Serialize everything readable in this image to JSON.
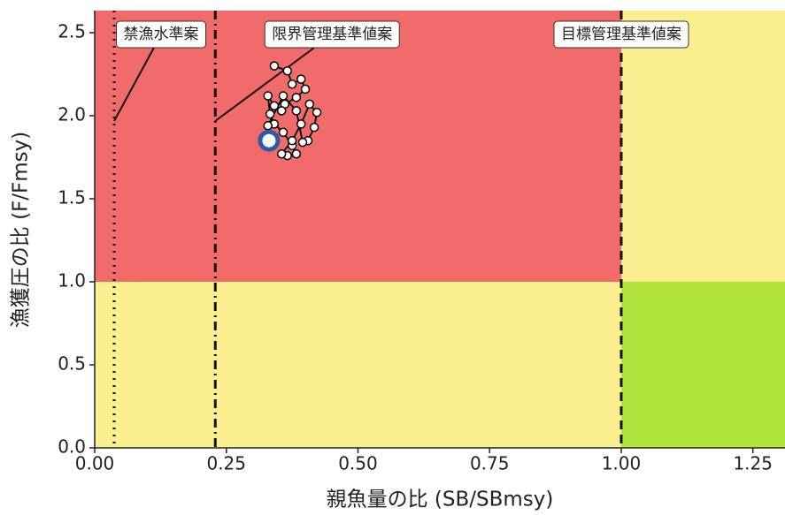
{
  "chart_data": {
    "type": "kobe",
    "x_label": "親魚量の比 (SB/SBmsy)",
    "y_label": "漁獲圧の比 (F/Fmsy)",
    "xlim": [
      0,
      1.311
    ],
    "ylim": [
      0,
      2.633
    ],
    "xticks": [
      {
        "value": 0,
        "label": "0.00"
      },
      {
        "value": 0.25,
        "label": "0.25"
      },
      {
        "value": 0.5,
        "label": "0.50"
      },
      {
        "value": 0.75,
        "label": "0.75"
      },
      {
        "value": 1,
        "label": "1.00"
      },
      {
        "value": 1.25,
        "label": "1.25"
      }
    ],
    "yticks": [
      {
        "value": 0,
        "label": "0.0"
      },
      {
        "value": 0.5,
        "label": "0.5"
      },
      {
        "value": 1,
        "label": "1.0"
      },
      {
        "value": 1.5,
        "label": "1.5"
      },
      {
        "value": 2,
        "label": "2.0"
      },
      {
        "value": 2.5,
        "label": "2.5"
      }
    ],
    "f_threshold": 1.0,
    "zone_colors": {
      "overfished_overfishing": "#f26b6b",
      "caution": "#fbee8e",
      "healthy": "#b0e63c"
    },
    "reference_lines": [
      {
        "label": "禁漁水準案",
        "x": 0.037,
        "dash": "2,6"
      },
      {
        "label": "限界管理基準値案",
        "x": 0.229,
        "dash": "10,5,2,5"
      },
      {
        "label": "目標管理基準値案",
        "x": 1.0,
        "dash": "10,6"
      }
    ],
    "series": [
      {
        "color": "#000000",
        "highlight_color": "#2f5aa8",
        "x": [
          0.341,
          0.366,
          0.375,
          0.392,
          0.4,
          0.383,
          0.361,
          0.355,
          0.341,
          0.329,
          0.333,
          0.341,
          0.358,
          0.375,
          0.383,
          0.366,
          0.355,
          0.375,
          0.392,
          0.408,
          0.422,
          0.417,
          0.405,
          0.395,
          0.383,
          0.358,
          0.329,
          0.331
        ],
        "values": [
          2.3,
          2.27,
          2.19,
          2.22,
          2.16,
          2.11,
          2.07,
          2.03,
          2.06,
          2.12,
          2.01,
          1.95,
          1.9,
          1.82,
          1.77,
          1.76,
          1.77,
          1.85,
          1.95,
          2.07,
          2.02,
          1.93,
          1.85,
          1.84,
          2.03,
          2.12,
          1.94,
          1.85
        ]
      }
    ]
  }
}
